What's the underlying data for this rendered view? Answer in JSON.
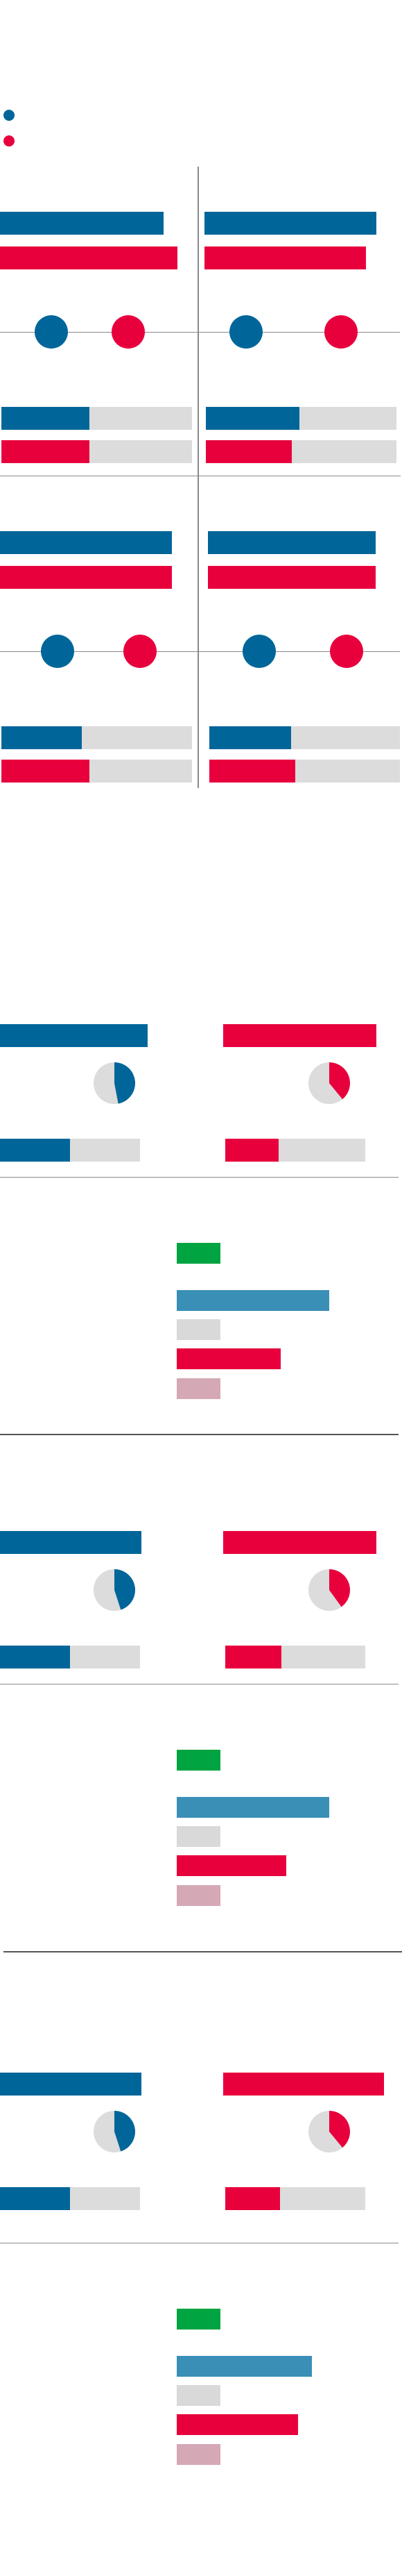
{
  "colors": {
    "blue": "#006699",
    "red": "#e8003d",
    "track": "#dcdcdc",
    "green": "#00a440",
    "light_blue": "#3a8fb7",
    "light_gray": "#d9d9d9",
    "pink": "#d4a8b4"
  },
  "chart_data": [
    {
      "type": "bar",
      "title": "",
      "legend": {
        "position": "top-left",
        "series": [
          "blue",
          "red"
        ]
      },
      "panels": [
        {
          "bars": {
            "blue": 0.82,
            "red": 0.89
          },
          "dots": {
            "blue": 0.26,
            "red": 0.65
          },
          "progress": {
            "blue": 0.46,
            "red": 0.46
          }
        },
        {
          "bars": {
            "blue": 0.86,
            "red": 0.81
          },
          "dots": {
            "blue": 0.21,
            "red": 0.69
          },
          "progress": {
            "blue": 0.49,
            "red": 0.45
          }
        },
        {
          "bars": {
            "blue": 0.86,
            "red": 0.86
          },
          "dots": {
            "blue": 0.29,
            "red": 0.71
          },
          "progress": {
            "blue": 0.42,
            "red": 0.46
          }
        },
        {
          "bars": {
            "blue": 0.84,
            "red": 0.84
          },
          "dots": {
            "blue": 0.26,
            "red": 0.7
          },
          "progress": {
            "blue": 0.43,
            "red": 0.45
          }
        }
      ]
    },
    {
      "type": "pie",
      "rows": [
        {
          "blue": {
            "bar": 0.76,
            "pie": 0.47,
            "progress": 0.5
          },
          "red": {
            "bar": 0.79,
            "pie": 0.39,
            "progress": 0.38
          },
          "breakdown": [
            0.25,
            0.88,
            0.25,
            0.6,
            0.25
          ]
        },
        {
          "blue": {
            "bar": 0.73,
            "pie": 0.45,
            "progress": 0.5
          },
          "red": {
            "bar": 0.79,
            "pie": 0.4,
            "progress": 0.4
          },
          "breakdown": [
            0.25,
            0.88,
            0.25,
            0.63,
            0.25
          ]
        },
        {
          "blue": {
            "bar": 0.73,
            "pie": 0.45,
            "progress": 0.5
          },
          "red": {
            "bar": 0.83,
            "pie": 0.39,
            "progress": 0.39
          },
          "breakdown": [
            0.25,
            0.78,
            0.25,
            0.7,
            0.25
          ]
        }
      ]
    }
  ]
}
